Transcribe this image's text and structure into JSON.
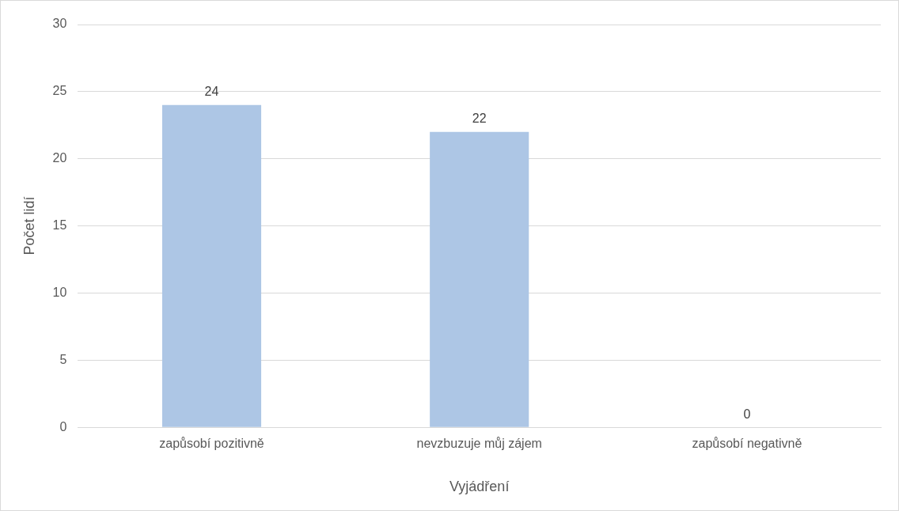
{
  "chart_data": {
    "type": "bar",
    "xlabel": "Vyjádření",
    "ylabel": "Počet lidí",
    "categories": [
      "zapůsobí pozitivně",
      "nevzbuzuje můj zájem",
      "zapůsobí negativně"
    ],
    "values": [
      24,
      22,
      0
    ],
    "color": "#adc6e5",
    "ylim": [
      0,
      30
    ],
    "yticks": [
      0,
      5,
      10,
      15,
      20,
      25,
      30
    ],
    "grid": "y",
    "data_labels": true,
    "legend": false
  }
}
